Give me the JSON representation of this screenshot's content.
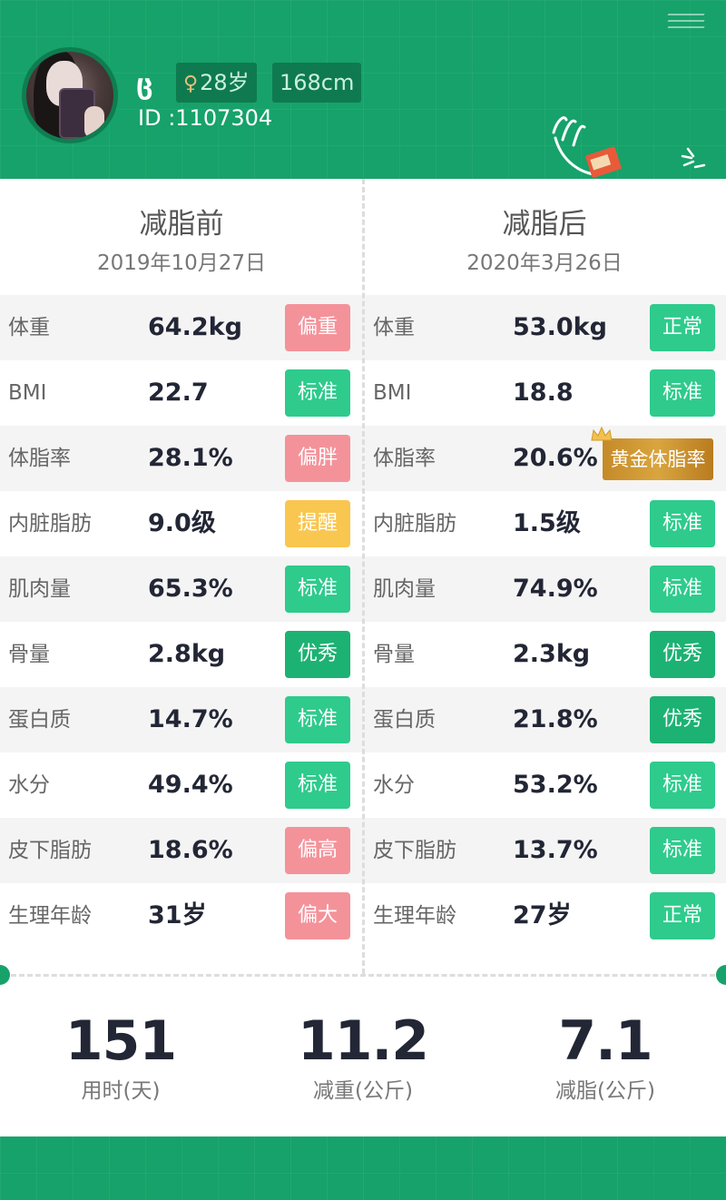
{
  "profile": {
    "name_glyph": "ც",
    "gender_symbol": "♀",
    "age": "28岁",
    "height": "168cm",
    "id": "ID :1107304"
  },
  "columns": {
    "before": {
      "title": "减脂前",
      "date": "2019年10月27日"
    },
    "after": {
      "title": "减脂后",
      "date": "2020年3月26日"
    }
  },
  "colors": {
    "brand_green": "#16a26a",
    "badge_teal": "#2ecb8c",
    "badge_green_dark": "#1cb273",
    "badge_pink": "#f4929a",
    "badge_yellow": "#f9c64f",
    "badge_gold": "#d49c36"
  },
  "metrics": [
    {
      "label": "体重",
      "before": {
        "value": "64.2kg",
        "badge": "偏重",
        "color": "#f4929a"
      },
      "after": {
        "value": "53.0kg",
        "badge": "正常",
        "color": "#2ecb8c"
      }
    },
    {
      "label": "BMI",
      "before": {
        "value": "22.7",
        "badge": "标准",
        "color": "#2ecb8c"
      },
      "after": {
        "value": "18.8",
        "badge": "标准",
        "color": "#2ecb8c"
      }
    },
    {
      "label": "体脂率",
      "before": {
        "value": "28.1%",
        "badge": "偏胖",
        "color": "#f4929a"
      },
      "after": {
        "value": "20.6%",
        "badge": "黄金体脂率",
        "color": "#d49c36"
      }
    },
    {
      "label": "内脏脂肪",
      "before": {
        "value": "9.0级",
        "badge": "提醒",
        "color": "#f9c64f"
      },
      "after": {
        "value": "1.5级",
        "badge": "标准",
        "color": "#2ecb8c"
      }
    },
    {
      "label": "肌肉量",
      "before": {
        "value": "65.3%",
        "badge": "标准",
        "color": "#2ecb8c"
      },
      "after": {
        "value": "74.9%",
        "badge": "标准",
        "color": "#2ecb8c"
      }
    },
    {
      "label": "骨量",
      "before": {
        "value": "2.8kg",
        "badge": "优秀",
        "color": "#1cb273"
      },
      "after": {
        "value": "2.3kg",
        "badge": "优秀",
        "color": "#1cb273"
      }
    },
    {
      "label": "蛋白质",
      "before": {
        "value": "14.7%",
        "badge": "标准",
        "color": "#2ecb8c"
      },
      "after": {
        "value": "21.8%",
        "badge": "优秀",
        "color": "#1cb273"
      }
    },
    {
      "label": "水分",
      "before": {
        "value": "49.4%",
        "badge": "标准",
        "color": "#2ecb8c"
      },
      "after": {
        "value": "53.2%",
        "badge": "标准",
        "color": "#2ecb8c"
      }
    },
    {
      "label": "皮下脂肪",
      "before": {
        "value": "18.6%",
        "badge": "偏高",
        "color": "#f4929a"
      },
      "after": {
        "value": "13.7%",
        "badge": "标准",
        "color": "#2ecb8c"
      }
    },
    {
      "label": "生理年龄",
      "before": {
        "value": "31岁",
        "badge": "偏大",
        "color": "#f4929a"
      },
      "after": {
        "value": "27岁",
        "badge": "正常",
        "color": "#2ecb8c"
      }
    }
  ],
  "summary": [
    {
      "value": "151",
      "label": "用时(天)"
    },
    {
      "value": "11.2",
      "label": "减重(公斤)"
    },
    {
      "value": "7.1",
      "label": "减脂(公斤)"
    }
  ]
}
